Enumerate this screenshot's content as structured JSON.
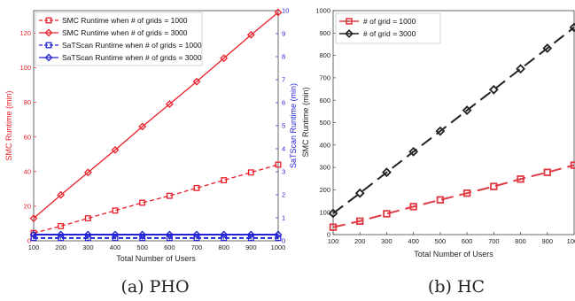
{
  "captions": {
    "a": "(a) PHO",
    "b": "(b) HC"
  },
  "chart_data": [
    {
      "id": "pho",
      "type": "line",
      "xlabel": "Total Number of Users",
      "ylabel": "SMC Runtime (min)",
      "ylabel_right": "SaTScan Runtime (min)",
      "xlim": [
        100,
        1000
      ],
      "ylim": [
        0,
        133
      ],
      "ylim_right": [
        0,
        10
      ],
      "x_ticks": [
        100,
        200,
        300,
        400,
        500,
        600,
        700,
        800,
        900,
        1000
      ],
      "y_ticks": [
        0,
        20,
        40,
        60,
        80,
        100,
        120
      ],
      "y_ticks_right": [
        0,
        1,
        2,
        3,
        4,
        5,
        6,
        7,
        8,
        9,
        10
      ],
      "grid": false,
      "legend": "top-left",
      "x": [
        100,
        200,
        300,
        400,
        500,
        600,
        700,
        800,
        900,
        1000
      ],
      "series": [
        {
          "name": "SMC Runtime when # of grids = 1000",
          "axis": "left",
          "marker": "square",
          "dash": true,
          "color": "#e8202a",
          "values": [
            4.5,
            8.5,
            13,
            17.5,
            22,
            26,
            30.5,
            35,
            39.5,
            44
          ]
        },
        {
          "name": "SMC Runtime when # of grids = 3000",
          "axis": "left",
          "marker": "diamond",
          "dash": false,
          "color": "#e8202a",
          "values": [
            13,
            26.5,
            39.5,
            52.5,
            66,
            79,
            92,
            105.5,
            119,
            132
          ]
        },
        {
          "name": "SaTScan Runtime when # of grids = 1000",
          "axis": "right",
          "marker": "square",
          "dash": true,
          "color": "#2323d6",
          "values": [
            0.12,
            0.12,
            0.12,
            0.12,
            0.12,
            0.12,
            0.12,
            0.12,
            0.12,
            0.12
          ]
        },
        {
          "name": "SaTScan Runtime when # of grids = 3000",
          "axis": "right",
          "marker": "diamond",
          "dash": false,
          "color": "#2323d6",
          "values": [
            0.27,
            0.27,
            0.27,
            0.27,
            0.27,
            0.27,
            0.27,
            0.27,
            0.27,
            0.27
          ]
        }
      ]
    },
    {
      "id": "hc",
      "type": "line",
      "xlabel": "Total Number of Users",
      "ylabel": "SMC Runtime (min)",
      "xlim": [
        100,
        1000
      ],
      "ylim": [
        0,
        1000
      ],
      "x_ticks": [
        100,
        200,
        300,
        400,
        500,
        600,
        700,
        800,
        900,
        1000
      ],
      "y_ticks": [
        0,
        100,
        200,
        300,
        400,
        500,
        600,
        700,
        800,
        900,
        1000
      ],
      "grid": false,
      "legend": "top-left",
      "x": [
        100,
        200,
        300,
        400,
        500,
        600,
        700,
        800,
        900,
        1000
      ],
      "series": [
        {
          "name": "# of grid = 1000",
          "marker": "square",
          "color": "#e03a44",
          "values": [
            33,
            60,
            93,
            125,
            155,
            185,
            215,
            248,
            278,
            310
          ]
        },
        {
          "name": "# of grid = 3000",
          "marker": "diamond",
          "color": "#222222",
          "values": [
            95,
            185,
            278,
            370,
            462,
            555,
            647,
            740,
            832,
            925
          ]
        }
      ]
    }
  ]
}
